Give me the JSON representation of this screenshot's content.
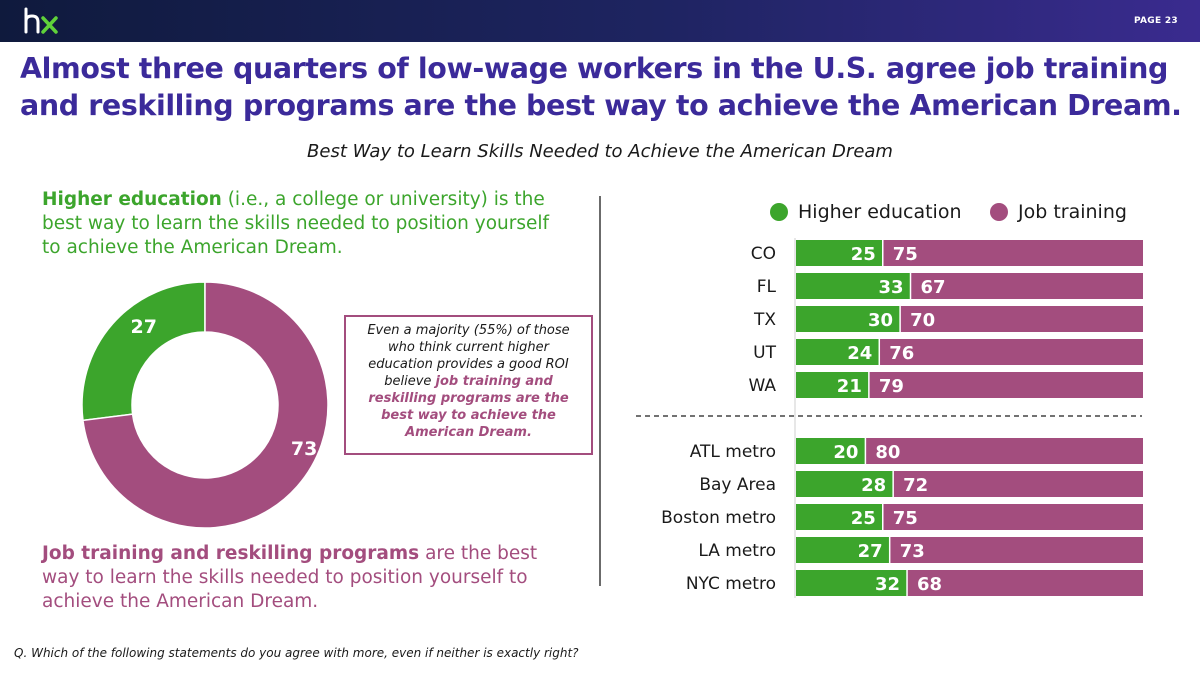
{
  "header": {
    "logo_text": "hx",
    "page_label": "PAGE  23"
  },
  "headline": {
    "line1": "Almost three quarters of low-wage workers in the U.S. agree job training",
    "line2": "and reskilling programs are the best way to achieve the American Dream."
  },
  "subtitle": "Best Way to Learn Skills Needed to Achieve the American Dream",
  "statements": {
    "higher_bold": "Higher education",
    "higher_rest": " (i.e., a college or university) is the best way to learn the skills needed to position yourself to achieve the American Dream.",
    "job_bold": "Job training and reskilling programs",
    "job_rest": " are the best way to learn the skills needed to position yourself to achieve the American Dream."
  },
  "callout": {
    "plain": "Even a majority (55%) of those who think current higher education provides a good ROI believe ",
    "highlight": "job training and reskilling programs are the best way to achieve the American Dream."
  },
  "legend": {
    "higher": "Higher education",
    "job": "Job training"
  },
  "question": "Q. Which of the following statements do you agree with more, even if neither is exactly right?",
  "colors": {
    "higher": "#3ca52c",
    "job": "#a34d7e",
    "headline": "#3b2a9a"
  },
  "chart_data": [
    {
      "type": "pie",
      "variant": "donut",
      "labels": [
        "Higher education",
        "Job training"
      ],
      "values": [
        27,
        73
      ]
    },
    {
      "type": "bar",
      "orientation": "horizontal",
      "stacked": true,
      "legend_position": "top",
      "groups": [
        [
          "CO",
          "FL",
          "TX",
          "UT",
          "WA"
        ],
        [
          "ATL metro",
          "Bay Area",
          "Boston metro",
          "LA metro",
          "NYC metro"
        ]
      ],
      "categories": [
        "CO",
        "FL",
        "TX",
        "UT",
        "WA",
        "ATL metro",
        "Bay Area",
        "Boston metro",
        "LA metro",
        "NYC metro"
      ],
      "series": [
        {
          "name": "Higher education",
          "values": [
            25,
            33,
            30,
            24,
            21,
            20,
            28,
            25,
            27,
            32
          ]
        },
        {
          "name": "Job training",
          "values": [
            75,
            67,
            70,
            76,
            79,
            80,
            72,
            75,
            73,
            68
          ]
        }
      ],
      "xlim": [
        0,
        100
      ]
    }
  ]
}
